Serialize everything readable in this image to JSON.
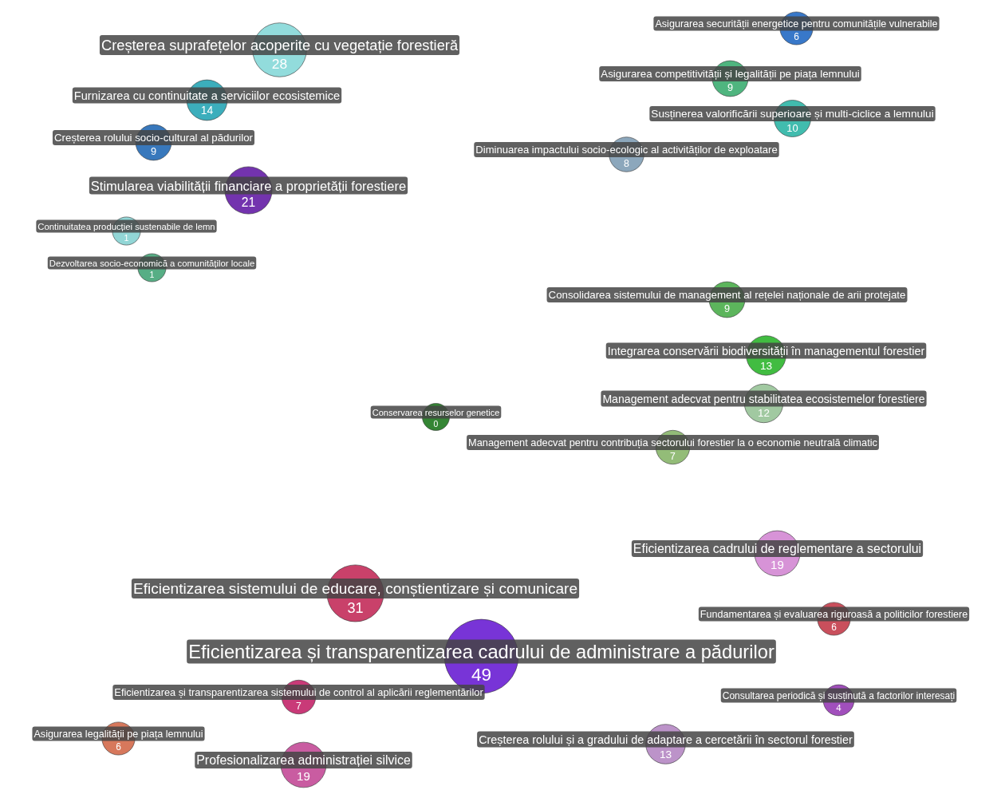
{
  "chart_data": {
    "type": "other",
    "categories": [
      "Creșterea suprafețelor acoperite cu vegetație forestieră",
      "Furnizarea cu continuitate a serviciilor ecosistemice",
      "Creșterea rolului socio-cultural al pădurilor",
      "Stimularea viabilității financiare a proprietății forestiere",
      "Continuitatea producției sustenabile de lemn",
      "Dezvoltarea socio-economică a comunităților locale",
      "Asigurarea securității energetice pentru comunitățile vulnerabile",
      "Asigurarea competitivității și legalității pe piața lemnului",
      "Susținerea valorificării superioare și multi-ciclice a lemnului",
      "Diminuarea impactului socio-ecologic al activităților de exploatare",
      "Consolidarea sistemului de management al rețelei naționale de arii protejate",
      "Integrarea conservării biodiversității în managementul forestier",
      "Management adecvat pentru stabilitatea ecosistemelor forestiere",
      "Conservarea resurselor genetice",
      "Management adecvat pentru contribuția sectorului forestier la o economie neutrală climatic",
      "Eficientizarea cadrului de reglementare a sectorului",
      "Eficientizarea sistemului de educare, conștientizare și comunicare",
      "Fundamentarea și evaluarea riguroasă a politicilor forestiere",
      "Eficientizarea și transparentizarea cadrului de administrare a pădurilor",
      "Eficientizarea și transparentizarea sistemului de control al aplicării reglementărilor",
      "Asigurarea legalității pe piața lemnului",
      "Consultarea periodică și susținută a factorilor interesați",
      "Creșterea rolului și a gradului de adaptare a cercetării în sectorul forestier",
      "Profesionalizarea administrației silvice"
    ],
    "values": [
      28,
      14,
      9,
      21,
      1,
      1,
      6,
      9,
      10,
      8,
      9,
      13,
      12,
      0,
      7,
      19,
      31,
      6,
      49,
      7,
      6,
      4,
      13,
      19
    ],
    "colors": [
      "#7fd6d6",
      "#1aa0b0",
      "#1560b0",
      "#5a0fa0",
      "#7fcfcf",
      "#3aa070",
      "#1560c0",
      "#30a868",
      "#20b0a0",
      "#7898b0",
      "#40a840",
      "#20b020",
      "#90c090",
      "#107010",
      "#80b060",
      "#d080d0",
      "#c02050",
      "#c03040",
      "#6010d0",
      "#c01860",
      "#d06040",
      "#9030b0",
      "#b080c0",
      "#c04090"
    ],
    "data_labels": true
  }
}
